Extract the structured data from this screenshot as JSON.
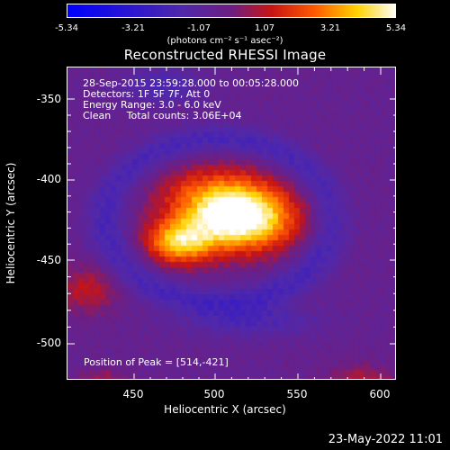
{
  "colorbar": {
    "ticks": [
      "-5.34",
      "-3.21",
      "-1.07",
      "1.07",
      "3.21",
      "5.34"
    ],
    "unit": "(photons cm⁻² s⁻¹ asec⁻²)"
  },
  "title": "Reconstructed RHESSI Image",
  "info": {
    "line1": "28-Sep-2015 23:59:28.000 to 00:05:28.000",
    "line2": "Detectors: 1F 5F 7F, Att 0",
    "line3": "Energy Range: 3.0 - 6.0 keV",
    "line4": "Clean     Total counts: 3.06E+04"
  },
  "peak": "Position of Peak = [514,-421]",
  "axes": {
    "xlabel": "Heliocentric X (arcsec)",
    "ylabel": "Heliocentric Y (arcsec)",
    "xticks": [
      "450",
      "500",
      "550",
      "600"
    ],
    "yticks": [
      "-350",
      "-400",
      "-450",
      "-500"
    ]
  },
  "timestamp": "23-May-2022 11:01",
  "colors": {
    "background": "#000000",
    "text": "#ffffff",
    "cmap_low": "#0000ff",
    "cmap_mid": "#5a2ca0",
    "cmap_high": "#ffff00"
  }
}
